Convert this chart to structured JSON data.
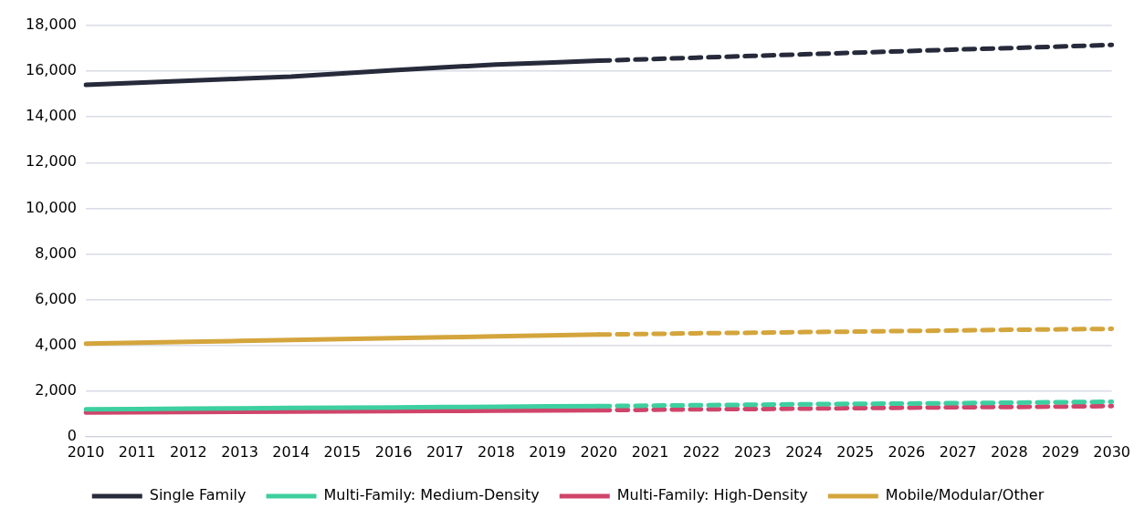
{
  "chart_data": {
    "type": "line",
    "categories": [
      "2010",
      "2011",
      "2012",
      "2013",
      "2014",
      "2015",
      "2016",
      "2017",
      "2018",
      "2019",
      "2020",
      "2021",
      "2022",
      "2023",
      "2024",
      "2025",
      "2026",
      "2027",
      "2028",
      "2029",
      "2030"
    ],
    "ylim": [
      0,
      18000
    ],
    "yticks": [
      {
        "value": 0,
        "label": "0"
      },
      {
        "value": 2000,
        "label": "2,000"
      },
      {
        "value": 4000,
        "label": "4,000"
      },
      {
        "value": 6000,
        "label": "6,000"
      },
      {
        "value": 8000,
        "label": "8,000"
      },
      {
        "value": 10000,
        "label": "10,000"
      },
      {
        "value": 12000,
        "label": "12,000"
      },
      {
        "value": 14000,
        "label": "14,000"
      },
      {
        "value": 16000,
        "label": "16,000"
      },
      {
        "value": 18000,
        "label": "18,000"
      }
    ],
    "grid": "y",
    "legend": "bottom",
    "marker": "none",
    "series": [
      {
        "name": "Single Family",
        "color": "#262a3a",
        "line_style": "solid",
        "values": [
          15400,
          15490,
          15580,
          15670,
          15760,
          15900,
          16040,
          16170,
          16290,
          16370,
          16460,
          null,
          null,
          null,
          null,
          null,
          null,
          null,
          null,
          null,
          null
        ]
      },
      {
        "name": "Multi-Family: Medium-Density",
        "color": "#3ecfa0",
        "line_style": "solid",
        "values": [
          1200,
          1210,
          1230,
          1240,
          1260,
          1270,
          1280,
          1300,
          1310,
          1330,
          1340,
          null,
          null,
          null,
          null,
          null,
          null,
          null,
          null,
          null,
          null
        ]
      },
      {
        "name": "Multi-Family: High-Density",
        "color": "#d0446a",
        "line_style": "solid",
        "values": [
          1060,
          1070,
          1080,
          1090,
          1100,
          1110,
          1120,
          1130,
          1140,
          1150,
          1160,
          null,
          null,
          null,
          null,
          null,
          null,
          null,
          null,
          null,
          null
        ]
      },
      {
        "name": "Mobile/Modular/Other",
        "color": "#d4a53c",
        "line_style": "solid",
        "values": [
          4070,
          4110,
          4150,
          4190,
          4230,
          4270,
          4310,
          4350,
          4390,
          4430,
          4470,
          null,
          null,
          null,
          null,
          null,
          null,
          null,
          null,
          null,
          null
        ]
      },
      {
        "color": "#262a3a",
        "line_style": "dashed",
        "values": [
          null,
          null,
          null,
          null,
          null,
          null,
          null,
          null,
          null,
          null,
          16460,
          16530,
          16600,
          16670,
          16740,
          16810,
          16880,
          16950,
          17010,
          17080,
          17150
        ]
      },
      {
        "color": "#3ecfa0",
        "line_style": "dashed",
        "values": [
          null,
          null,
          null,
          null,
          null,
          null,
          null,
          null,
          null,
          null,
          1340,
          1360,
          1380,
          1400,
          1420,
          1440,
          1450,
          1470,
          1490,
          1510,
          1530
        ]
      },
      {
        "color": "#d0446a",
        "line_style": "dashed",
        "values": [
          null,
          null,
          null,
          null,
          null,
          null,
          null,
          null,
          null,
          null,
          1160,
          1180,
          1200,
          1210,
          1230,
          1250,
          1270,
          1290,
          1300,
          1320,
          1340
        ]
      },
      {
        "color": "#d4a53c",
        "line_style": "dashed",
        "values": [
          null,
          null,
          null,
          null,
          null,
          null,
          null,
          null,
          null,
          null,
          4470,
          4500,
          4530,
          4550,
          4580,
          4600,
          4630,
          4650,
          4680,
          4700,
          4720
        ]
      }
    ]
  }
}
